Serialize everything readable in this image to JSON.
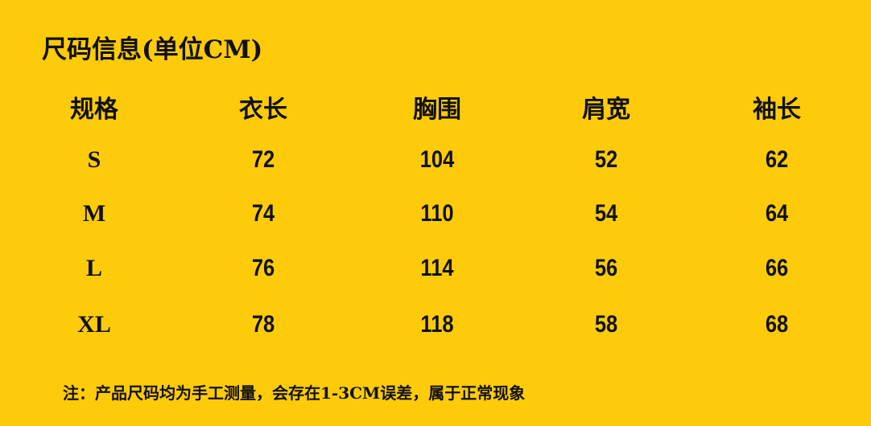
{
  "title": "尺码信息(单位CM)",
  "table": {
    "headers": [
      "规格",
      "衣长",
      "胸围",
      "肩宽",
      "袖长"
    ],
    "rows": [
      [
        "S",
        "72",
        "104",
        "52",
        "62"
      ],
      [
        "M",
        "74",
        "110",
        "54",
        "64"
      ],
      [
        "L",
        "76",
        "114",
        "56",
        "66"
      ],
      [
        "XL",
        "78",
        "118",
        "58",
        "68"
      ]
    ]
  },
  "note": "注：产品尺码均为手工测量，会存在1-3CM误差，属于正常现象",
  "colors": {
    "background": "#FDCB0A",
    "text": "#111111"
  }
}
